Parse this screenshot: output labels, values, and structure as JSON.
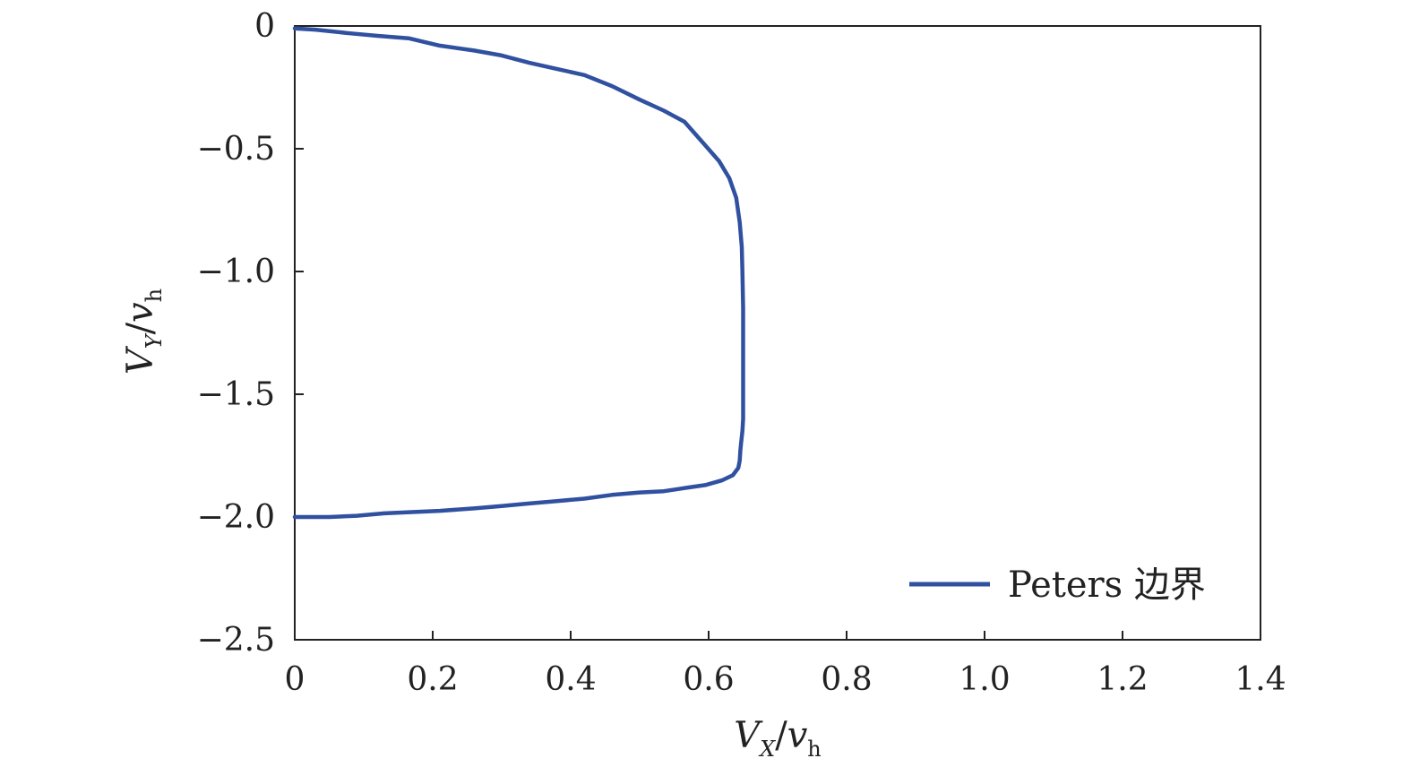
{
  "chart_data": {
    "type": "line",
    "xlabel": {
      "main": "V",
      "sub": "X",
      "sep": "/",
      "denom": "v",
      "denom_sub": "h"
    },
    "ylabel": {
      "main": "V",
      "sub": "Y",
      "sep": "/",
      "denom": "v",
      "denom_sub": "h"
    },
    "xlim": [
      0,
      1.4
    ],
    "ylim": [
      -2.5,
      0
    ],
    "xticks": [
      0,
      0.2,
      0.4,
      0.6,
      0.8,
      1.0,
      1.2,
      1.4
    ],
    "xtick_labels": [
      "0",
      "0.2",
      "0.4",
      "0.6",
      "0.8",
      "1.0",
      "1.2",
      "1.4"
    ],
    "yticks": [
      0,
      -0.5,
      -1.0,
      -1.5,
      -2.0,
      -2.5
    ],
    "ytick_labels": [
      "0",
      "−0.5",
      "−1.0",
      "−1.5",
      "−2.0",
      "−2.5"
    ],
    "grid": false,
    "legend_position": "bottom-right",
    "series": [
      {
        "name": "Peters 边界",
        "color": "#3050a0",
        "x": [
          0,
          0.03,
          0.08,
          0.12,
          0.165,
          0.21,
          0.26,
          0.3,
          0.34,
          0.38,
          0.42,
          0.46,
          0.5,
          0.535,
          0.565,
          0.59,
          0.615,
          0.63,
          0.64,
          0.645,
          0.648,
          0.649,
          0.65,
          0.65,
          0.65,
          0.649,
          0.647,
          0.646,
          0.645,
          0.643,
          0.635,
          0.62,
          0.595,
          0.57,
          0.535,
          0.5,
          0.46,
          0.42,
          0.38,
          0.34,
          0.3,
          0.26,
          0.21,
          0.17,
          0.13,
          0.09,
          0.05,
          0
        ],
        "y": [
          -0.01,
          -0.015,
          -0.03,
          -0.04,
          -0.05,
          -0.08,
          -0.1,
          -0.12,
          -0.15,
          -0.175,
          -0.2,
          -0.245,
          -0.3,
          -0.345,
          -0.39,
          -0.47,
          -0.55,
          -0.62,
          -0.7,
          -0.8,
          -0.9,
          -1.0,
          -1.15,
          -1.4,
          -1.6,
          -1.65,
          -1.7,
          -1.73,
          -1.77,
          -1.8,
          -1.83,
          -1.85,
          -1.87,
          -1.88,
          -1.895,
          -1.9,
          -1.91,
          -1.925,
          -1.935,
          -1.945,
          -1.955,
          -1.965,
          -1.975,
          -1.98,
          -1.985,
          -1.995,
          -2.0,
          -2.0
        ]
      }
    ]
  }
}
